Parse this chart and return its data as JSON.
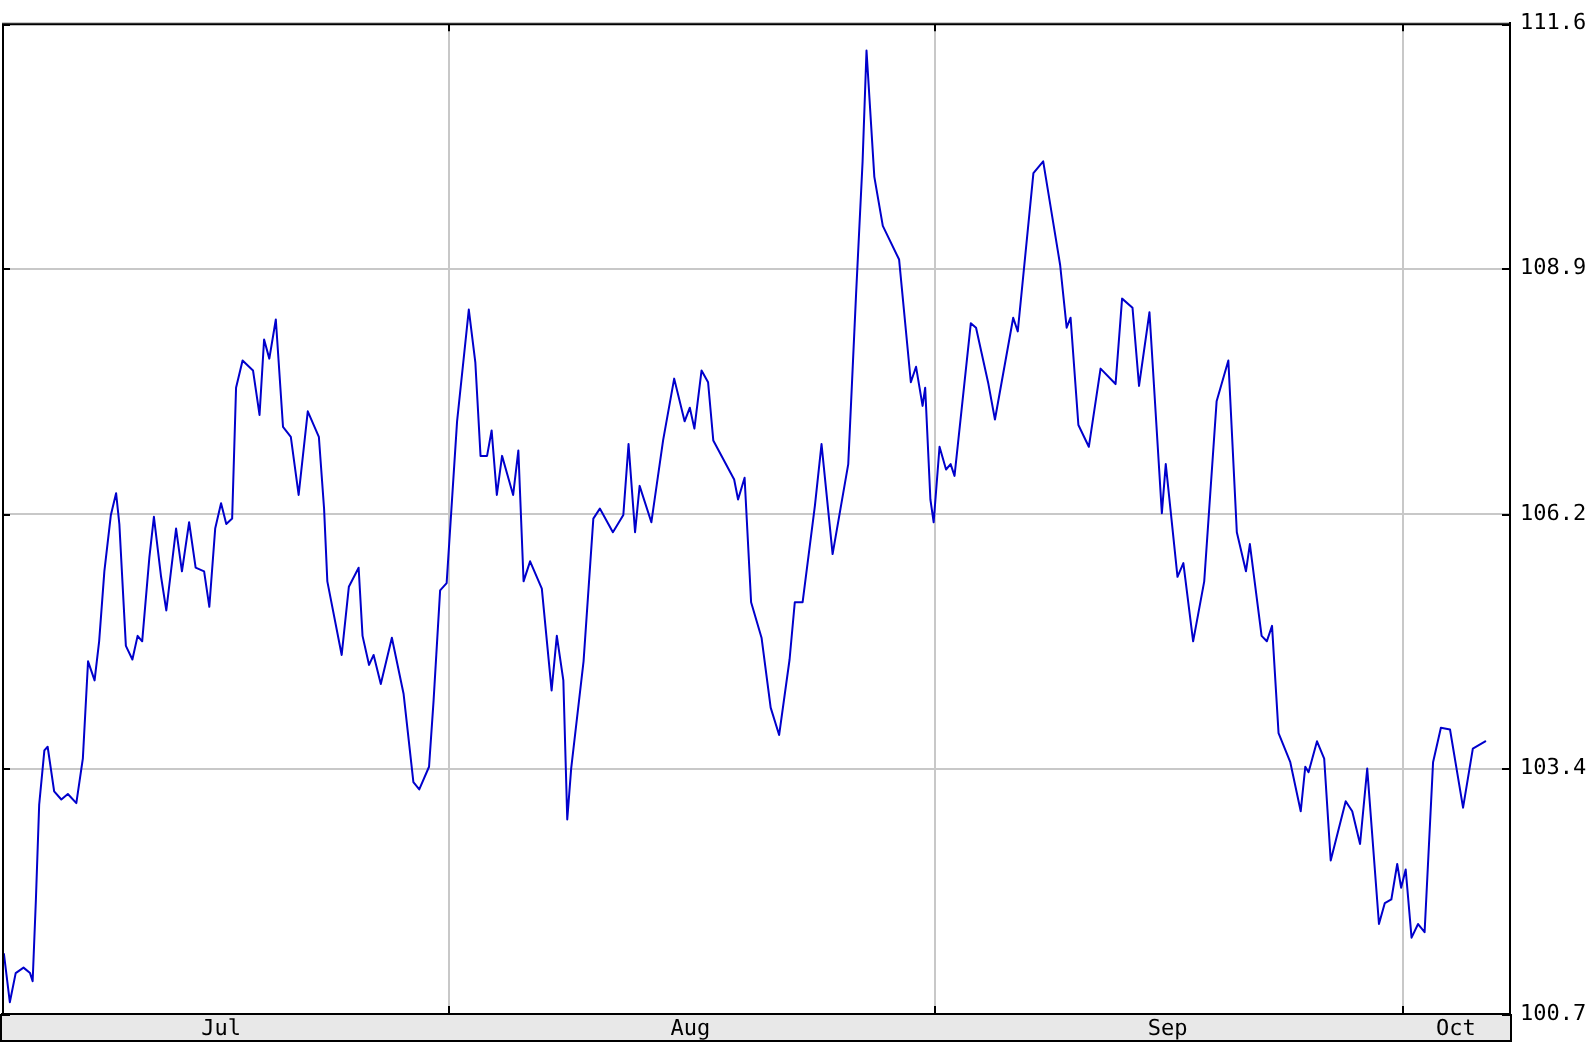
{
  "chart_data": {
    "type": "line",
    "x": [
      "--07-03T15:00",
      "--07-04T00:00",
      "--07-04T09:00",
      "--07-04T21:00",
      "--07-05T07:00",
      "--07-05T11:00",
      "--07-05T16:00",
      "--07-05T21:00",
      "--07-06T05:00",
      "--07-06T10:00",
      "--07-06T20:00",
      "--07-07T07:00",
      "--07-07T17:00",
      "--07-08T06:00",
      "--07-08T16:00",
      "--07-09T00:00",
      "--07-09T10:00",
      "--07-09T17:00",
      "--07-10T01:00",
      "--07-10T11:00",
      "--07-10T19:00",
      "--07-11T00:00",
      "--07-11T10:00",
      "--07-11T20:00",
      "--07-12T04:00",
      "--07-12T11:00",
      "--07-12T22:00",
      "--07-13T05:00",
      "--07-13T16:00",
      "--07-14T00:00",
      "--07-14T15:00",
      "--07-15T00:00",
      "--07-15T11:00",
      "--07-15T21:00",
      "--07-16T10:00",
      "--07-16T18:00",
      "--07-17T03:00",
      "--07-17T12:00",
      "--07-17T20:00",
      "--07-18T05:00",
      "--07-18T11:00",
      "--07-18T21:00",
      "--07-19T13:00",
      "--07-19T23:00",
      "--07-20T06:00",
      "--07-20T14:00",
      "--07-21T00:00",
      "--07-21T11:00",
      "--07-21T23:00",
      "--07-22T11:00",
      "--07-23T01:00",
      "--07-23T18:00",
      "--07-24T02:00",
      "--07-24T07:00",
      "--07-25T05:00",
      "--07-25T16:00",
      "--07-26T07:00",
      "--07-26T13:00",
      "--07-26T23:00",
      "--07-27T06:00",
      "--07-27T17:00",
      "--07-28T10:00",
      "--07-29T04:00",
      "--07-29T19:00",
      "--07-30T04:00",
      "--07-30T19:00",
      "--07-31T02:00",
      "--07-31T12:00",
      "--07-31T22:00",
      "--08-01T14:00",
      "--08-02T08:00",
      "--08-02T18:00",
      "--08-03T02:00",
      "--08-03T12:00",
      "--08-03T19:00",
      "--08-04T03:00",
      "--08-04T11:00",
      "--08-05T04:00",
      "--08-05T12:00",
      "--08-05T20:00",
      "--08-06T06:00",
      "--08-07T00:00",
      "--08-07T15:00",
      "--08-07T23:00",
      "--08-08T09:00",
      "--08-08T15:00",
      "--08-08T21:00",
      "--08-09T16:00",
      "--08-10T07:00",
      "--08-10T17:00",
      "--08-11T13:00",
      "--08-12T05:00",
      "--08-12T13:00",
      "--08-12T23:00",
      "--08-13T06:00",
      "--08-14T00:00",
      "--08-14T18:00",
      "--08-15T11:00",
      "--08-16T03:00",
      "--08-16T11:00",
      "--08-16T18:00",
      "--08-17T05:00",
      "--08-17T15:00",
      "--08-17T23:00",
      "--08-19T07:00",
      "--08-19T13:00",
      "--08-19T23:00",
      "--08-20T09:00",
      "--08-21T01:00",
      "--08-21T15:00",
      "--08-22T04:00",
      "--08-22T20:00",
      "--08-23T04:00",
      "--08-23T16:00",
      "--08-24T11:00",
      "--08-24T21:00",
      "--08-25T14:00",
      "--08-26T14:00",
      "--08-27T02:00",
      "--08-27T12:00",
      "--08-27T18:00",
      "--08-28T06:00",
      "--08-28T19:00",
      "--08-29T20:00",
      "--08-30T14:00",
      "--08-30T22:00",
      "--08-31T08:00",
      "--08-31T12:00",
      "--08-31T20:00",
      "--09-01T01:00",
      "--09-01T10:00",
      "--09-01T20:00",
      "--09-02T03:00",
      "--09-02T09:00",
      "--09-03T10:00",
      "--09-03T18:00",
      "--09-04T13:00",
      "--09-04T23:00",
      "--09-06T03:00",
      "--09-06T10:00",
      "--09-07T10:00",
      "--09-08T01:00",
      "--09-09T03:00",
      "--09-09T13:00",
      "--09-09T19:00",
      "--09-10T07:00",
      "--09-10T23:00",
      "--09-11T17:00",
      "--09-12T16:00",
      "--09-13T02:00",
      "--09-13T18:00",
      "--09-14T04:00",
      "--09-14T20:00",
      "--09-15T15:00",
      "--09-15T21:00",
      "--09-16T15:00",
      "--09-17T00:00",
      "--09-17T15:00",
      "--09-18T08:00",
      "--09-19T03:00",
      "--09-19T21:00",
      "--09-20T10:00",
      "--09-21T00:00",
      "--09-21T06:00",
      "--09-22T00:00",
      "--09-22T08:00",
      "--09-22T16:00",
      "--09-23T02:00",
      "--09-23T20:00",
      "--09-24T12:00",
      "--09-24T19:00",
      "--09-25T00:00",
      "--09-25T13:00",
      "--09-26T00:00",
      "--09-26T10:00",
      "--09-27T09:00",
      "--09-27T19:00",
      "--09-28T07:00",
      "--09-28T18:00",
      "--09-29T12:00",
      "--09-29T21:00",
      "--09-30T07:00",
      "--09-30T16:00",
      "--09-30T22:00",
      "--10-01T05:00",
      "--10-01T14:00",
      "--10-02T00:00",
      "--10-02T10:00",
      "--10-02T23:00",
      "--10-03T11:00",
      "--10-04T01:00",
      "--10-04T21:00",
      "--10-05T12:00",
      "--10-06T07:00"
    ],
    "series": [
      {
        "color": "#0000cc",
        "values": [
          101.36,
          100.83,
          101.15,
          101.21,
          101.15,
          101.06,
          101.96,
          103.0,
          103.6,
          103.64,
          103.15,
          103.06,
          103.12,
          103.02,
          103.51,
          104.58,
          104.37,
          104.8,
          105.57,
          106.19,
          106.43,
          106.09,
          104.75,
          104.6,
          104.86,
          104.8,
          105.72,
          106.17,
          105.51,
          105.14,
          106.04,
          105.57,
          106.11,
          105.61,
          105.57,
          105.18,
          106.04,
          106.32,
          106.09,
          106.15,
          107.59,
          107.89,
          107.78,
          107.29,
          108.12,
          107.91,
          108.34,
          107.16,
          107.05,
          106.41,
          107.33,
          107.05,
          106.26,
          105.46,
          104.65,
          105.4,
          105.61,
          104.86,
          104.54,
          104.65,
          104.33,
          104.84,
          104.22,
          103.25,
          103.17,
          103.42,
          104.15,
          105.36,
          105.44,
          107.22,
          108.45,
          107.87,
          106.84,
          106.84,
          107.12,
          106.41,
          106.84,
          106.41,
          106.9,
          105.46,
          105.68,
          105.38,
          104.26,
          104.86,
          104.37,
          102.84,
          103.4,
          104.58,
          106.15,
          106.26,
          106.0,
          106.19,
          106.97,
          106.0,
          106.51,
          106.11,
          107.01,
          107.69,
          107.22,
          107.37,
          107.14,
          107.78,
          107.65,
          107.01,
          106.58,
          106.36,
          106.6,
          105.23,
          104.84,
          104.07,
          103.77,
          104.6,
          105.23,
          105.23,
          106.3,
          106.97,
          105.76,
          106.75,
          108.62,
          110.08,
          111.3,
          109.91,
          109.37,
          109.0,
          107.65,
          107.82,
          107.39,
          107.59,
          106.36,
          106.11,
          106.94,
          106.69,
          106.75,
          106.62,
          108.3,
          108.25,
          107.63,
          107.24,
          108.36,
          108.21,
          109.95,
          110.08,
          108.94,
          108.25,
          108.36,
          107.18,
          106.94,
          107.8,
          107.63,
          108.57,
          108.47,
          107.61,
          108.42,
          106.21,
          106.75,
          105.51,
          105.66,
          104.8,
          105.46,
          107.44,
          107.89,
          106.0,
          105.57,
          105.87,
          104.86,
          104.8,
          104.97,
          103.79,
          103.47,
          102.93,
          103.42,
          103.36,
          103.7,
          103.51,
          102.39,
          103.04,
          102.93,
          102.57,
          103.4,
          101.69,
          101.92,
          101.96,
          102.35,
          102.09,
          102.29,
          101.54,
          101.69,
          101.6,
          103.47,
          103.85,
          103.83,
          102.97,
          103.62,
          103.7
        ]
      }
    ],
    "xlim": [
      "--07-03T12:00",
      "--10-07T21:00"
    ],
    "xticks": [
      {
        "value": "--07-17T12:00",
        "label": "Jul"
      },
      {
        "value": "--08-01",
        "label": null
      },
      {
        "value": "--08-16T12:00",
        "label": "Aug"
      },
      {
        "value": "--09-01",
        "label": null
      },
      {
        "value": "--09-16",
        "label": "Sep"
      },
      {
        "value": "--10-01",
        "label": null
      },
      {
        "value": "--10-04T10:00",
        "label": "Oct"
      }
    ],
    "ylim": [
      100.7,
      111.6
    ],
    "yticks": [
      100.7,
      103.4,
      106.2,
      108.9,
      111.6
    ],
    "grid": true
  }
}
